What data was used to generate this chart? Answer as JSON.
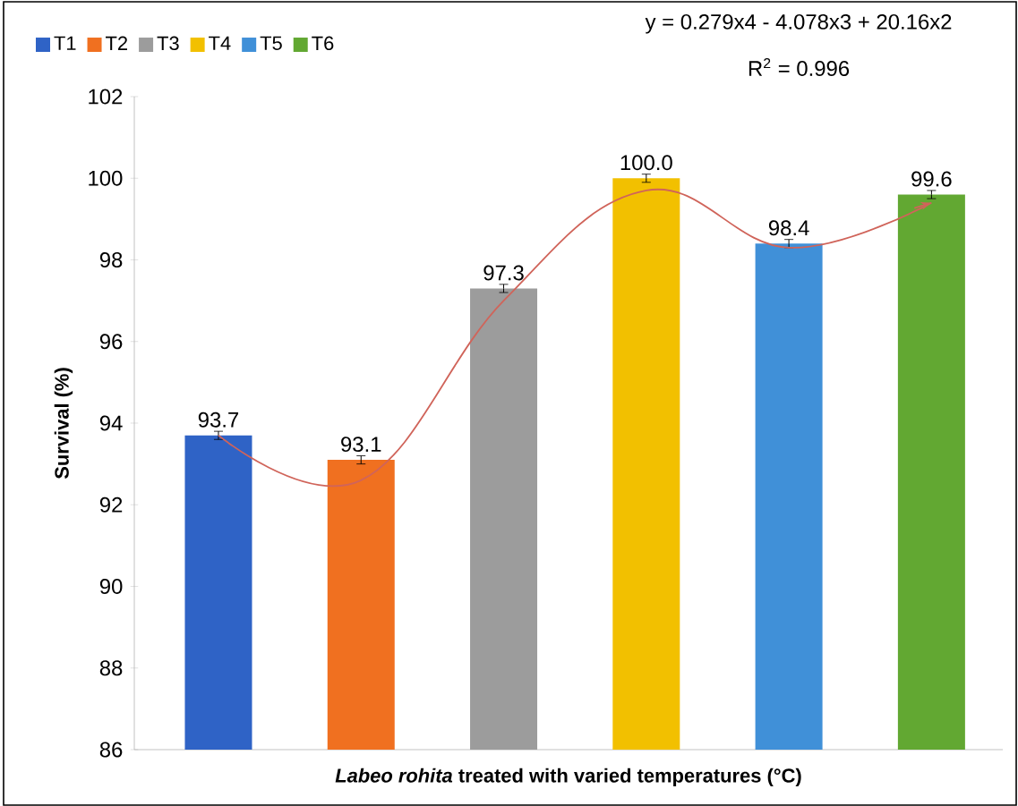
{
  "chart_data": {
    "type": "bar",
    "categories": [
      null,
      null,
      null,
      null,
      null,
      null
    ],
    "xlabel": "*Labeo rohita* treated with varied temperatures (°C)",
    "ylabel": "Survival (%)",
    "ylim": [
      86,
      102
    ],
    "yticks": [
      86,
      88,
      90,
      92,
      94,
      96,
      98,
      100,
      102
    ],
    "legend": "top left",
    "annotations": [
      "y = 0.279x4 - 4.078x3 + 20.16x2",
      "R$^{2}$ = 0.996"
    ],
    "series": [
      {
        "name": "T1",
        "color": "#2f63c6",
        "values": [
          93.7,
          null,
          null,
          null,
          null,
          null
        ],
        "errors": [
          0.1,
          null,
          null,
          null,
          null,
          null
        ],
        "value_labels": [
          "93.7",
          null,
          null,
          null,
          null,
          null
        ]
      },
      {
        "name": "T2",
        "color": "#f07020",
        "values": [
          null,
          93.1,
          null,
          null,
          null,
          null
        ],
        "errors": [
          null,
          0.1,
          null,
          null,
          null,
          null
        ],
        "value_labels": [
          null,
          "93.1",
          null,
          null,
          null,
          null
        ]
      },
      {
        "name": "T3",
        "color": "#9c9c9c",
        "values": [
          null,
          null,
          97.3,
          null,
          null,
          null
        ],
        "errors": [
          null,
          null,
          0.1,
          null,
          null,
          null
        ],
        "value_labels": [
          null,
          null,
          "97.3",
          null,
          null,
          null
        ]
      },
      {
        "name": "T4",
        "color": "#f2c000",
        "values": [
          null,
          null,
          null,
          100.0,
          null,
          null
        ],
        "errors": [
          null,
          null,
          null,
          0.1,
          null,
          null
        ],
        "value_labels": [
          null,
          null,
          null,
          "100.0",
          null,
          null
        ]
      },
      {
        "name": "T5",
        "color": "#4090d8",
        "values": [
          null,
          null,
          null,
          null,
          98.4,
          null
        ],
        "errors": [
          null,
          null,
          null,
          null,
          0.1,
          null
        ],
        "value_labels": [
          null,
          null,
          null,
          null,
          "98.4",
          null
        ]
      },
      {
        "name": "T6",
        "color": "#62a832",
        "values": [
          null,
          null,
          null,
          null,
          null,
          99.6
        ],
        "errors": [
          null,
          null,
          null,
          null,
          null,
          0.1
        ],
        "value_labels": [
          null,
          null,
          null,
          null,
          null,
          "99.6"
        ]
      },
      {
        "type": "line",
        "color": "#d0645a",
        "values": [
          93.7,
          92.6,
          97.0,
          99.7,
          98.3,
          99.4
        ]
      }
    ]
  }
}
